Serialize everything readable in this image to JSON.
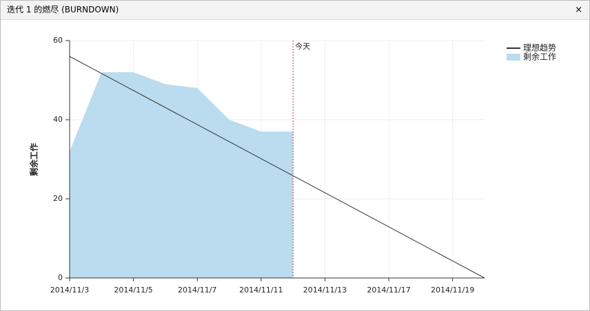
{
  "panel": {
    "title": "迭代 1 的燃尽 (BURNDOWN)",
    "close": "×"
  },
  "chart_data": {
    "type": "line",
    "ylabel": "剩余工作",
    "xlim": [
      0,
      13
    ],
    "ylim": [
      0,
      60
    ],
    "xticks": [
      {
        "value": 0,
        "label": "2014/11/3"
      },
      {
        "value": 2,
        "label": "2014/11/5"
      },
      {
        "value": 4,
        "label": "2014/11/7"
      },
      {
        "value": 6,
        "label": "2014/11/11"
      },
      {
        "value": 8,
        "label": "2014/11/13"
      },
      {
        "value": 10,
        "label": "2014/11/17"
      },
      {
        "value": 12,
        "label": "2014/11/19"
      }
    ],
    "yticks": [
      0,
      20,
      40,
      60
    ],
    "grid": true,
    "legend": "top-right",
    "today": {
      "x": 7,
      "label": "今天",
      "color": "#c0392b"
    },
    "series": [
      {
        "name": "理想趋势",
        "type": "line",
        "color": "#333333",
        "x": [
          0,
          13
        ],
        "values": [
          56,
          0
        ]
      },
      {
        "name": "剩余工作",
        "type": "area",
        "color": "#badcee",
        "x": [
          0,
          1,
          2,
          3,
          4,
          5,
          6,
          7
        ],
        "values": [
          32,
          52,
          52,
          49,
          48,
          40,
          37,
          37
        ]
      }
    ]
  }
}
